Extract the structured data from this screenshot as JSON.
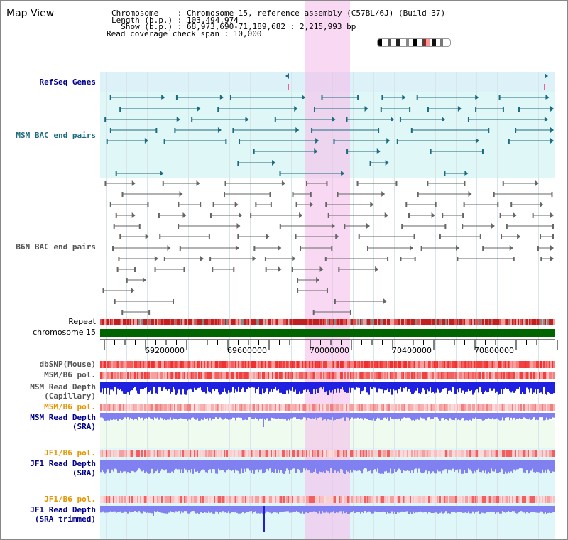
{
  "view": {
    "title": "Map View",
    "chromosome_label": "Chromosome    : Chromosome 15, reference assembly (C57BL/6J) (Build 37)",
    "length_label": "Length (b.p.) : 103,494,974",
    "show_label": "  Show (b.p.) : 68,973,690-71,189,682 : 2,215,993 bp",
    "coverage_label": "Read coverage check span : 10,000"
  },
  "tracks": {
    "refseq": "RefSeq Genes",
    "msm_bac": "MSM BAC end pairs",
    "b6n_bac": "B6N BAC end pairs",
    "repeat": "Repeat",
    "chromosome": "chromosome 15",
    "dbsnp": "dbSNP(Mouse)",
    "msm_pol": "MSM/B6 pol.",
    "msm_depth_cap_1": "MSM Read Depth",
    "msm_depth_cap_2": "(Capillary)",
    "msm_pol2": "MSM/B6 pol.",
    "msm_depth_sra_1": "MSM Read Depth",
    "msm_depth_sra_2": "(SRA)",
    "jf1_pol": "JF1/B6 pol.",
    "jf1_depth_1": "JF1 Read Depth",
    "jf1_depth_2": "(SRA)",
    "jf1_pol2": "JF1/B6 pol.",
    "jf1_trim_1": "JF1 Read Depth",
    "jf1_trim_2": "(SRA trimmed)"
  },
  "axis": {
    "ticks": [
      "69200000",
      "69600000",
      "70000000",
      "70400000",
      "70800000"
    ]
  },
  "colors": {
    "refseq_bg": "#dcf1f8",
    "msm_bg": "#e0f7f7",
    "highlight": "#f9d6f0",
    "depth_blue": "#2020e0",
    "depth_sra": "#8080f0",
    "chrom_green": "#006400",
    "repeat_red": "#d02020"
  }
}
